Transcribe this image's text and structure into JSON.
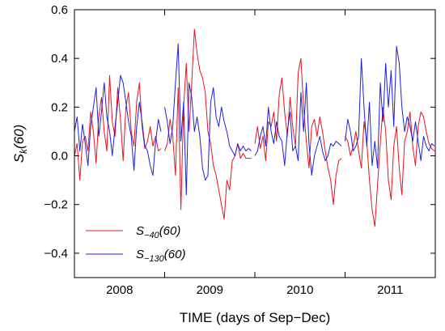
{
  "chart_data": {
    "type": "line",
    "xlabel": "TIME (days of Sep−Dec)",
    "ylabel": "S",
    "ylabel_sub": "k",
    "ylabel_suffix": "(60)",
    "ylim": [
      -0.5,
      0.6
    ],
    "y_ticks": [
      -0.4,
      -0.2,
      0.0,
      0.2,
      0.4,
      0.6
    ],
    "y_tick_labels": [
      "−0.4",
      "−0.2",
      "0.0",
      "0.2",
      "0.4",
      "0.6"
    ],
    "x_segments": [
      "2008",
      "2009",
      "2010",
      "2011"
    ],
    "x_range": [
      0,
      4
    ],
    "grid": false,
    "legend_position": "lower-left",
    "colors": {
      "red": "#e8141e",
      "blue": "#1f1fe0"
    },
    "series": [
      {
        "name_main": "S",
        "name_sub": "−40",
        "name_suffix": "(60)",
        "color": "#e8141e",
        "x": [
          0.0,
          0.03,
          0.06,
          0.09,
          0.12,
          0.15,
          0.18,
          0.21,
          0.24,
          0.27,
          0.3,
          0.33,
          0.36,
          0.39,
          0.42,
          0.45,
          0.48,
          0.51,
          0.54,
          0.57,
          0.6,
          0.63,
          0.66,
          0.69,
          0.72,
          0.75,
          0.78,
          0.81,
          0.84,
          0.87,
          0.9,
          0.93,
          0.96,
          1.0,
          1.03,
          1.06,
          1.09,
          1.12,
          1.15,
          1.18,
          1.21,
          1.24,
          1.27,
          1.3,
          1.33,
          1.36,
          1.39,
          1.42,
          1.45,
          1.48,
          1.51,
          1.54,
          1.57,
          1.6,
          1.63,
          1.66,
          1.69,
          1.72,
          1.75,
          1.78,
          1.81,
          1.84,
          1.87,
          1.9,
          1.93,
          1.96,
          2.0,
          2.03,
          2.06,
          2.09,
          2.12,
          2.15,
          2.18,
          2.21,
          2.24,
          2.27,
          2.3,
          2.33,
          2.36,
          2.39,
          2.42,
          2.45,
          2.48,
          2.51,
          2.54,
          2.57,
          2.6,
          2.63,
          2.66,
          2.69,
          2.72,
          2.75,
          2.78,
          2.81,
          2.84,
          2.87,
          2.9,
          2.93,
          2.96,
          3.0,
          3.03,
          3.06,
          3.09,
          3.12,
          3.15,
          3.18,
          3.21,
          3.24,
          3.27,
          3.3,
          3.33,
          3.36,
          3.39,
          3.42,
          3.45,
          3.48,
          3.51,
          3.54,
          3.57,
          3.6,
          3.63,
          3.66,
          3.69,
          3.72,
          3.75,
          3.78,
          3.81,
          3.84,
          3.87,
          3.9,
          3.93,
          3.96,
          3.99
        ],
        "y": [
          0.0,
          0.05,
          -0.1,
          0.06,
          0.08,
          0.02,
          0.18,
          0.1,
          -0.03,
          0.16,
          0.24,
          0.1,
          0.02,
          0.33,
          0.14,
          0.08,
          0.28,
          0.15,
          -0.02,
          0.2,
          0.26,
          0.1,
          0.04,
          0.22,
          0.3,
          0.12,
          0.03,
          0.06,
          0.12,
          0.04,
          0.08,
          0.02,
          0.03,
          0.02,
          0.05,
          0.15,
          0.08,
          -0.08,
          0.28,
          -0.22,
          0.2,
          0.38,
          0.1,
          0.3,
          0.52,
          0.42,
          0.35,
          0.32,
          0.26,
          0.1,
          0.05,
          -0.04,
          -0.08,
          -0.14,
          -0.2,
          -0.26,
          -0.1,
          -0.14,
          -0.02,
          0.0,
          0.05,
          -0.01,
          0.01,
          -0.01,
          -0.01,
          -0.01,
          0.05,
          0.12,
          0.03,
          0.08,
          -0.02,
          0.14,
          0.12,
          0.18,
          0.06,
          0.25,
          0.32,
          0.18,
          0.08,
          0.24,
          0.12,
          0.04,
          0.34,
          0.4,
          0.2,
          0.06,
          -0.05,
          0.12,
          0.15,
          0.08,
          0.16,
          0.1,
          0.02,
          -0.05,
          -0.1,
          -0.2,
          -0.08,
          -0.02,
          -0.01,
          0.08,
          0.06,
          0.0,
          0.04,
          0.1,
          0.02,
          -0.05,
          0.14,
          0.06,
          -0.1,
          -0.22,
          -0.29,
          -0.12,
          0.05,
          0.2,
          0.1,
          -0.1,
          -0.18,
          0.04,
          0.12,
          -0.05,
          -0.16,
          0.06,
          0.1,
          0.18,
          0.04,
          -0.04,
          0.12,
          0.18,
          0.16,
          0.1,
          0.05,
          0.03,
          0.02
        ],
        "gaps_after_index": [
          32,
          65,
          98
        ]
      },
      {
        "name_main": "S",
        "name_sub": "−130",
        "name_suffix": "(60)",
        "color": "#1f1fe0",
        "x": [
          0.0,
          0.03,
          0.06,
          0.09,
          0.12,
          0.15,
          0.18,
          0.21,
          0.24,
          0.27,
          0.3,
          0.33,
          0.36,
          0.39,
          0.42,
          0.45,
          0.48,
          0.51,
          0.54,
          0.57,
          0.6,
          0.63,
          0.66,
          0.69,
          0.72,
          0.75,
          0.78,
          0.81,
          0.84,
          0.87,
          0.9,
          0.93,
          0.96,
          1.0,
          1.03,
          1.06,
          1.09,
          1.12,
          1.15,
          1.18,
          1.21,
          1.24,
          1.27,
          1.3,
          1.33,
          1.36,
          1.39,
          1.42,
          1.45,
          1.48,
          1.51,
          1.54,
          1.57,
          1.6,
          1.63,
          1.66,
          1.69,
          1.72,
          1.75,
          1.78,
          1.81,
          1.84,
          1.87,
          1.9,
          1.93,
          1.96,
          2.0,
          2.03,
          2.06,
          2.09,
          2.12,
          2.15,
          2.18,
          2.21,
          2.24,
          2.27,
          2.3,
          2.33,
          2.36,
          2.39,
          2.42,
          2.45,
          2.48,
          2.51,
          2.54,
          2.57,
          2.6,
          2.63,
          2.66,
          2.69,
          2.72,
          2.75,
          2.78,
          2.81,
          2.84,
          2.87,
          2.9,
          2.93,
          2.96,
          3.0,
          3.03,
          3.06,
          3.09,
          3.12,
          3.15,
          3.18,
          3.21,
          3.24,
          3.27,
          3.3,
          3.33,
          3.36,
          3.39,
          3.42,
          3.45,
          3.48,
          3.51,
          3.54,
          3.57,
          3.6,
          3.63,
          3.66,
          3.69,
          3.72,
          3.75,
          3.78,
          3.81,
          3.84,
          3.87,
          3.9,
          3.93,
          3.96,
          3.99
        ],
        "y": [
          0.1,
          0.16,
          0.02,
          0.13,
          0.05,
          -0.04,
          0.12,
          0.2,
          0.28,
          0.08,
          0.18,
          0.3,
          0.16,
          0.1,
          0.0,
          0.12,
          0.22,
          0.33,
          0.3,
          0.22,
          0.14,
          0.08,
          -0.06,
          0.12,
          0.22,
          0.14,
          0.04,
          0.02,
          -0.04,
          -0.08,
          0.06,
          0.15,
          0.1,
          0.2,
          0.14,
          0.05,
          0.12,
          0.3,
          0.46,
          0.06,
          0.22,
          -0.16,
          0.3,
          0.24,
          0.1,
          0.16,
          0.08,
          -0.05,
          -0.1,
          -0.08,
          0.22,
          0.28,
          0.16,
          0.12,
          0.2,
          0.14,
          0.1,
          0.04,
          0.02,
          0.0,
          0.05,
          0.02,
          0.04,
          0.02,
          0.03,
          0.02,
          0.0,
          0.02,
          0.08,
          0.12,
          0.04,
          0.2,
          0.1,
          0.05,
          0.14,
          0.08,
          0.06,
          -0.04,
          0.1,
          0.18,
          0.02,
          0.04,
          -0.02,
          0.26,
          0.1,
          0.3,
          0.05,
          -0.08,
          0.0,
          0.04,
          0.08,
          0.02,
          -0.02,
          0.0,
          0.05,
          0.04,
          0.06,
          0.05,
          0.04,
          0.06,
          0.15,
          0.1,
          0.02,
          0.04,
          0.08,
          0.4,
          0.2,
          0.04,
          0.22,
          -0.04,
          0.06,
          -0.05,
          0.3,
          0.14,
          0.38,
          0.2,
          0.35,
          0.12,
          0.45,
          0.38,
          0.2,
          0.1,
          0.16,
          0.12,
          0.06,
          0.14,
          0.06,
          -0.02,
          0.08,
          0.04,
          0.02,
          0.05,
          0.04
        ],
        "gaps_after_index": [
          32,
          65,
          98
        ]
      }
    ]
  }
}
